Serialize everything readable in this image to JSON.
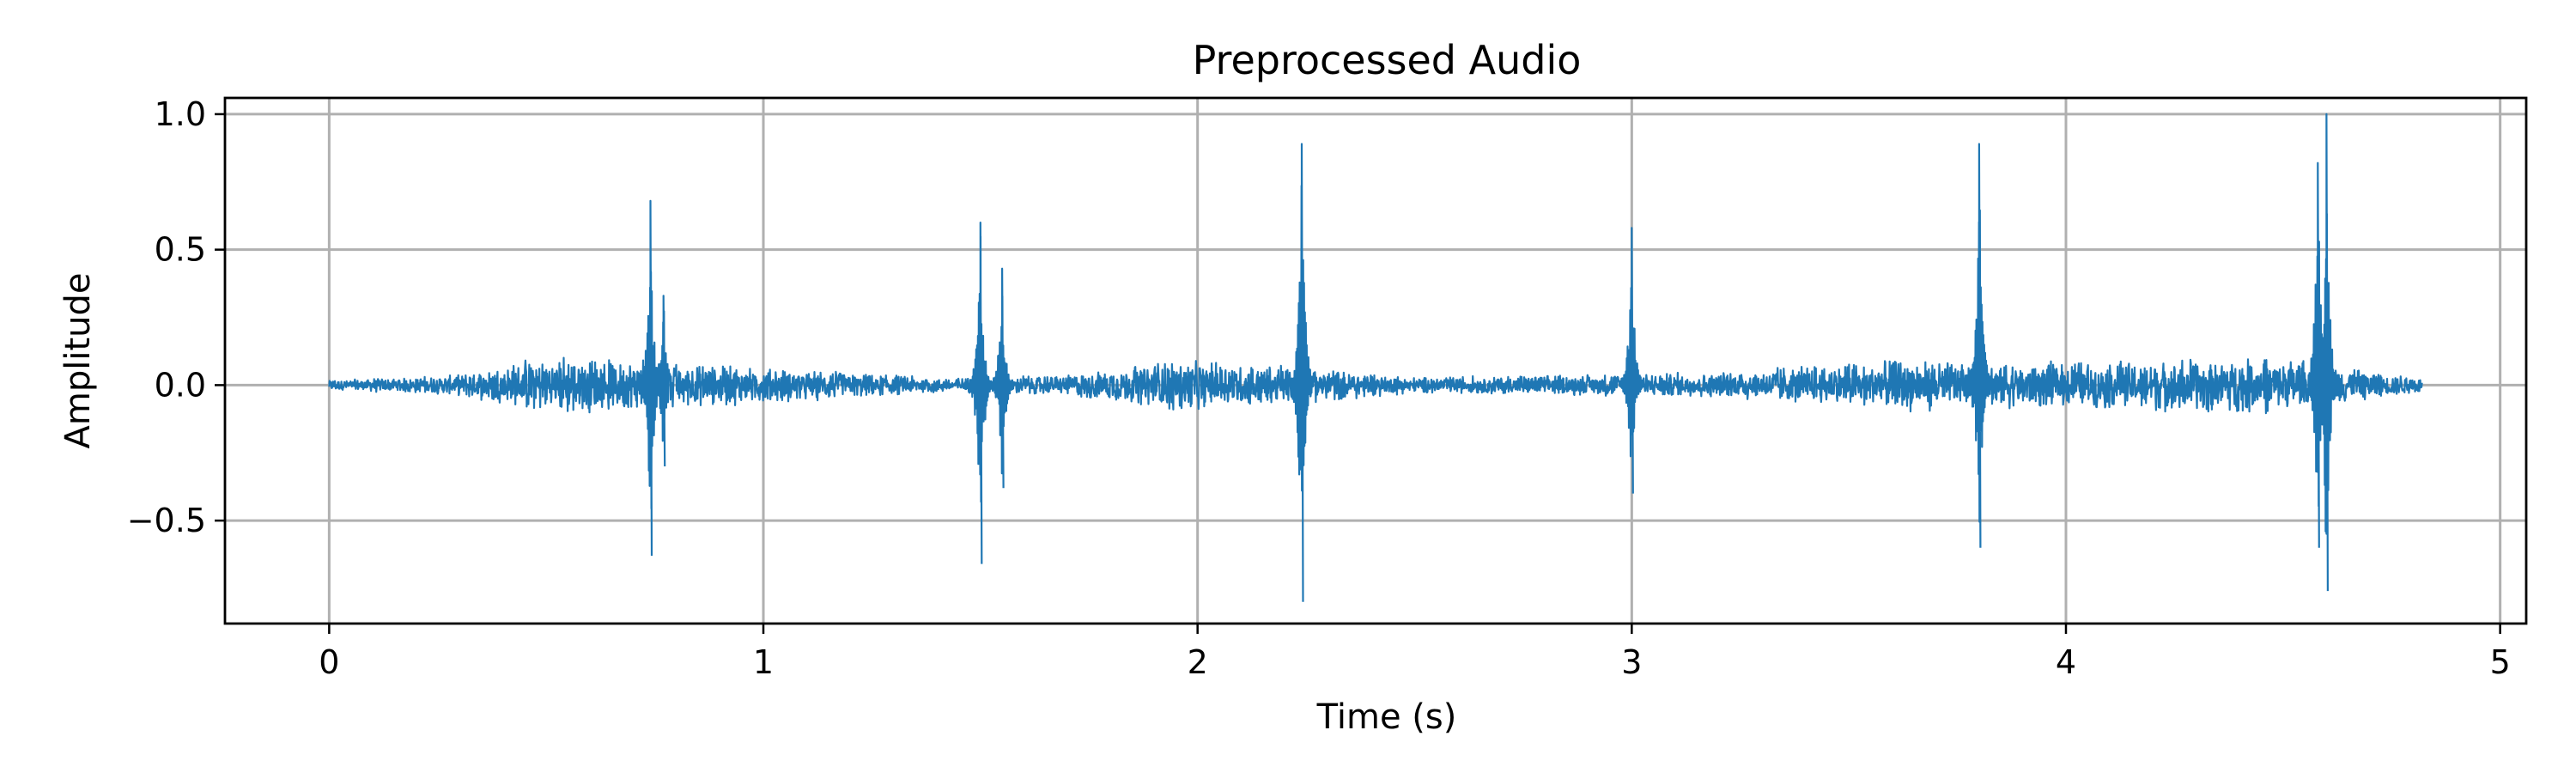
{
  "chart_data": {
    "type": "line",
    "title": "Preprocessed Audio",
    "xlabel": "Time (s)",
    "ylabel": "Amplitude",
    "xlim": [
      -0.24,
      5.06
    ],
    "ylim": [
      -0.88,
      1.06
    ],
    "x_ticks": [
      0,
      1,
      2,
      3,
      4,
      5
    ],
    "x_tick_labels": [
      "0",
      "1",
      "2",
      "3",
      "4",
      "5"
    ],
    "y_ticks": [
      -0.5,
      0.0,
      0.5,
      1.0
    ],
    "y_tick_labels": [
      "−0.5",
      "0.0",
      "0.5",
      "1.0"
    ],
    "grid": true,
    "color": "#1f77b4",
    "duration": 4.82,
    "transients": [
      {
        "t": 0.74,
        "max": 0.68,
        "min": -0.63
      },
      {
        "t": 0.77,
        "max": 0.33,
        "min": -0.3
      },
      {
        "t": 1.5,
        "max": 0.6,
        "min": -0.66
      },
      {
        "t": 1.55,
        "max": 0.43,
        "min": -0.38
      },
      {
        "t": 2.24,
        "max": 0.89,
        "min": -0.8
      },
      {
        "t": 3.0,
        "max": 0.58,
        "min": -0.4
      },
      {
        "t": 3.8,
        "max": 0.89,
        "min": -0.6
      },
      {
        "t": 4.6,
        "max": 1.0,
        "min": -0.76
      },
      {
        "t": 4.58,
        "max": 0.82,
        "min": -0.6
      }
    ],
    "noise_envelope": [
      {
        "t": 0.0,
        "a": 0.02
      },
      {
        "t": 0.3,
        "a": 0.04
      },
      {
        "t": 0.5,
        "a": 0.12
      },
      {
        "t": 0.8,
        "a": 0.09
      },
      {
        "t": 1.1,
        "a": 0.06
      },
      {
        "t": 1.4,
        "a": 0.03
      },
      {
        "t": 1.7,
        "a": 0.04
      },
      {
        "t": 1.95,
        "a": 0.1
      },
      {
        "t": 2.2,
        "a": 0.08
      },
      {
        "t": 2.5,
        "a": 0.03
      },
      {
        "t": 2.8,
        "a": 0.04
      },
      {
        "t": 3.2,
        "a": 0.05
      },
      {
        "t": 3.6,
        "a": 0.1
      },
      {
        "t": 3.9,
        "a": 0.09
      },
      {
        "t": 4.2,
        "a": 0.1
      },
      {
        "t": 4.5,
        "a": 0.11
      },
      {
        "t": 4.82,
        "a": 0.03
      }
    ]
  }
}
